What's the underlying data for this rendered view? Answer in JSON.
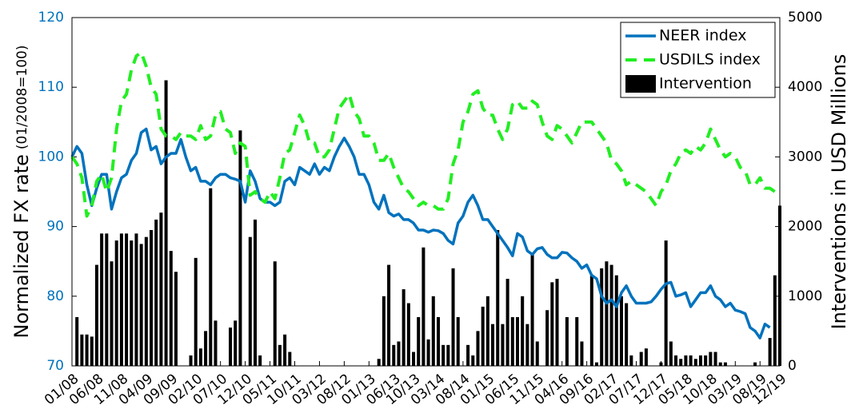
{
  "chart_data": {
    "type": "bar_line",
    "ylabel": "Normalized FX rate",
    "ylabel_note": "(01/2008=100)",
    "y2label": "Interventions in USD Millions",
    "x": [
      0,
      1,
      2,
      3,
      4,
      5,
      6,
      7,
      8,
      9,
      10,
      11,
      12,
      13,
      14,
      15,
      16,
      17,
      18,
      19,
      20,
      21,
      22,
      23,
      24,
      25,
      26,
      27,
      28,
      29,
      30,
      31,
      32,
      33,
      34,
      35,
      36,
      37,
      38,
      39,
      40,
      41,
      42,
      43,
      44,
      45,
      46,
      47,
      48,
      49,
      50,
      51,
      52,
      53,
      54,
      55,
      56,
      57,
      58,
      59,
      60,
      61,
      62,
      63,
      64,
      65,
      66,
      67,
      68,
      69,
      70,
      71,
      72,
      73,
      74,
      75,
      76,
      77,
      78,
      79,
      80,
      81,
      82,
      83,
      84,
      85,
      86,
      87,
      88,
      89,
      90,
      91,
      92,
      93,
      94,
      95,
      96,
      97,
      98,
      99,
      100,
      101,
      102,
      103,
      104,
      105,
      106,
      107,
      108,
      109,
      110,
      111,
      112,
      113,
      114,
      115,
      116,
      117,
      118,
      119,
      120,
      121,
      122,
      123,
      124,
      125,
      126,
      127,
      128,
      129,
      130,
      131,
      132,
      133,
      134,
      135,
      136,
      137,
      138,
      139,
      140,
      141,
      142,
      143
    ],
    "xlim": [
      0,
      143
    ],
    "xticks": [
      {
        "value": 0,
        "label": "01/08"
      },
      {
        "value": 5,
        "label": "06/08"
      },
      {
        "value": 10,
        "label": "11/08"
      },
      {
        "value": 15,
        "label": "04/09"
      },
      {
        "value": 20,
        "label": "09/09"
      },
      {
        "value": 25,
        "label": "02/10"
      },
      {
        "value": 30,
        "label": "07/10"
      },
      {
        "value": 35,
        "label": "12/10"
      },
      {
        "value": 40,
        "label": "05/11"
      },
      {
        "value": 45,
        "label": "10/11"
      },
      {
        "value": 50,
        "label": "03/12"
      },
      {
        "value": 55,
        "label": "08/12"
      },
      {
        "value": 60,
        "label": "01/13"
      },
      {
        "value": 65,
        "label": "06/13"
      },
      {
        "value": 69,
        "label": "10/13"
      },
      {
        "value": 74,
        "label": "03/14"
      },
      {
        "value": 79,
        "label": "08/14"
      },
      {
        "value": 84,
        "label": "01/15"
      },
      {
        "value": 89,
        "label": "06/15"
      },
      {
        "value": 94,
        "label": "11/15"
      },
      {
        "value": 99,
        "label": "04/16"
      },
      {
        "value": 104,
        "label": "09/16"
      },
      {
        "value": 109,
        "label": "02/17"
      },
      {
        "value": 114,
        "label": "07/17"
      },
      {
        "value": 119,
        "label": "12/17"
      },
      {
        "value": 124,
        "label": "05/18"
      },
      {
        "value": 129,
        "label": "10/18"
      },
      {
        "value": 134,
        "label": "03/19"
      },
      {
        "value": 139,
        "label": "08/19"
      },
      {
        "value": 143,
        "label": "12/19"
      }
    ],
    "ylim": [
      70,
      120
    ],
    "yticks": [
      70,
      80,
      90,
      100,
      110,
      120
    ],
    "y2lim": [
      0,
      5000
    ],
    "y2ticks": [
      0,
      1000,
      2000,
      3000,
      4000,
      5000
    ],
    "legend": "upper right",
    "series": [
      {
        "name": "NEER index",
        "type": "line",
        "color": "#0072bd",
        "axis": "y",
        "values": [
          100,
          101.5,
          100.5,
          96,
          93,
          95.5,
          97.5,
          97.5,
          92.5,
          95,
          97,
          97.5,
          99.5,
          100.5,
          103.5,
          104,
          101,
          101.5,
          99,
          100,
          100.5,
          100.5,
          102.5,
          100,
          98,
          98.5,
          96.5,
          96.5,
          96,
          97,
          97.5,
          97.5,
          97,
          96.8,
          96.5,
          93.5,
          98,
          96.5,
          94,
          93.5,
          93.5,
          93,
          93.5,
          96.5,
          97,
          96,
          98.5,
          98,
          97.5,
          99,
          97.5,
          98.5,
          98,
          100,
          101.5,
          102.7,
          101.5,
          100,
          97.5,
          97.5,
          96,
          93.5,
          92.5,
          94.5,
          92,
          91.5,
          91.8,
          91,
          91,
          90.5,
          89.5,
          89.5,
          89.2,
          89.5,
          89.4,
          89,
          88,
          87.5,
          90.5,
          91.5,
          93.5,
          94.5,
          93,
          91,
          91,
          90,
          89,
          88,
          87,
          85.8,
          89,
          88.5,
          86.5,
          86,
          86.8,
          87,
          86,
          85.5,
          85.5,
          86.3,
          86.2,
          85.5,
          85,
          84,
          84.5,
          83,
          82.5,
          80,
          79,
          79.5,
          78.5,
          80.5,
          81.5,
          80,
          79,
          79,
          79,
          79.2,
          80,
          81,
          81.8,
          82,
          80,
          80.2,
          80.5,
          78.5,
          79.5,
          80.5,
          80.5,
          81.5,
          80,
          79.5,
          78.5,
          79,
          78,
          77.8,
          77.5,
          75.5,
          75,
          74,
          76,
          75.5,
          null,
          null
        ]
      },
      {
        "name": "USDILS index",
        "type": "line",
        "dashed": true,
        "color": "#22ee22",
        "axis": "y",
        "values": [
          100,
          99,
          97,
          91.5,
          93,
          96.5,
          97.5,
          95,
          97,
          104,
          108,
          109,
          112.5,
          114.5,
          115,
          113,
          110,
          109,
          104,
          103,
          103,
          102.5,
          103.5,
          103,
          103,
          102.5,
          104.5,
          102.5,
          103,
          106,
          106.5,
          104,
          103.5,
          100.5,
          102,
          101.5,
          94.5,
          95,
          94,
          93.5,
          95,
          94,
          97,
          100.5,
          101,
          103.5,
          106,
          104.5,
          102,
          102,
          100,
          100,
          101,
          104,
          107,
          108,
          109,
          106.5,
          105.5,
          103,
          103,
          102,
          99.5,
          99.5,
          100.5,
          98.5,
          97,
          95.5,
          95,
          94,
          93,
          93.5,
          93,
          93,
          92.5,
          92.5,
          94,
          99,
          101,
          105,
          106.5,
          109,
          109.5,
          107,
          106,
          106,
          104,
          102.5,
          104,
          107.5,
          108,
          107,
          107,
          108,
          107.5,
          105,
          103,
          102.5,
          104.5,
          104,
          103,
          102,
          103.5,
          105,
          105,
          105,
          104,
          103,
          102,
          99.5,
          99,
          98,
          96,
          96.5,
          96,
          95.5,
          95,
          94,
          93,
          95,
          96,
          98,
          99,
          100.5,
          101,
          100.5,
          101.5,
          101,
          102,
          104,
          102.5,
          101,
          100,
          100.5,
          100,
          98.5,
          98,
          96,
          96,
          97,
          95.5,
          95.5,
          95,
          null
        ]
      },
      {
        "name": "Intervention",
        "type": "bar",
        "color": "#000000",
        "axis": "y2",
        "values": [
          0,
          700,
          450,
          450,
          420,
          1450,
          1900,
          1900,
          1500,
          1800,
          1900,
          1900,
          1800,
          1900,
          1750,
          1850,
          1950,
          2100,
          2200,
          4100,
          1650,
          1350,
          0,
          0,
          150,
          1550,
          250,
          500,
          2550,
          650,
          0,
          0,
          550,
          650,
          3380,
          0,
          1850,
          2100,
          150,
          0,
          0,
          1500,
          300,
          450,
          200,
          0,
          0,
          0,
          0,
          0,
          0,
          0,
          0,
          0,
          0,
          0,
          0,
          0,
          0,
          0,
          0,
          0,
          100,
          1000,
          1450,
          300,
          350,
          1100,
          900,
          200,
          700,
          1700,
          380,
          1000,
          700,
          300,
          300,
          1400,
          700,
          0,
          300,
          150,
          500,
          850,
          1000,
          600,
          1950,
          600,
          1250,
          700,
          700,
          1000,
          600,
          1600,
          350,
          0,
          800,
          1200,
          1250,
          0,
          700,
          0,
          700,
          350,
          0,
          1300,
          50,
          1400,
          1500,
          1450,
          1300,
          1000,
          900,
          150,
          0,
          200,
          250,
          0,
          0,
          50,
          1800,
          350,
          150,
          100,
          150,
          150,
          100,
          150,
          150,
          200,
          200,
          50,
          50,
          0,
          0,
          0,
          0,
          0,
          50,
          0,
          0,
          400,
          1300,
          2300
        ]
      }
    ]
  }
}
